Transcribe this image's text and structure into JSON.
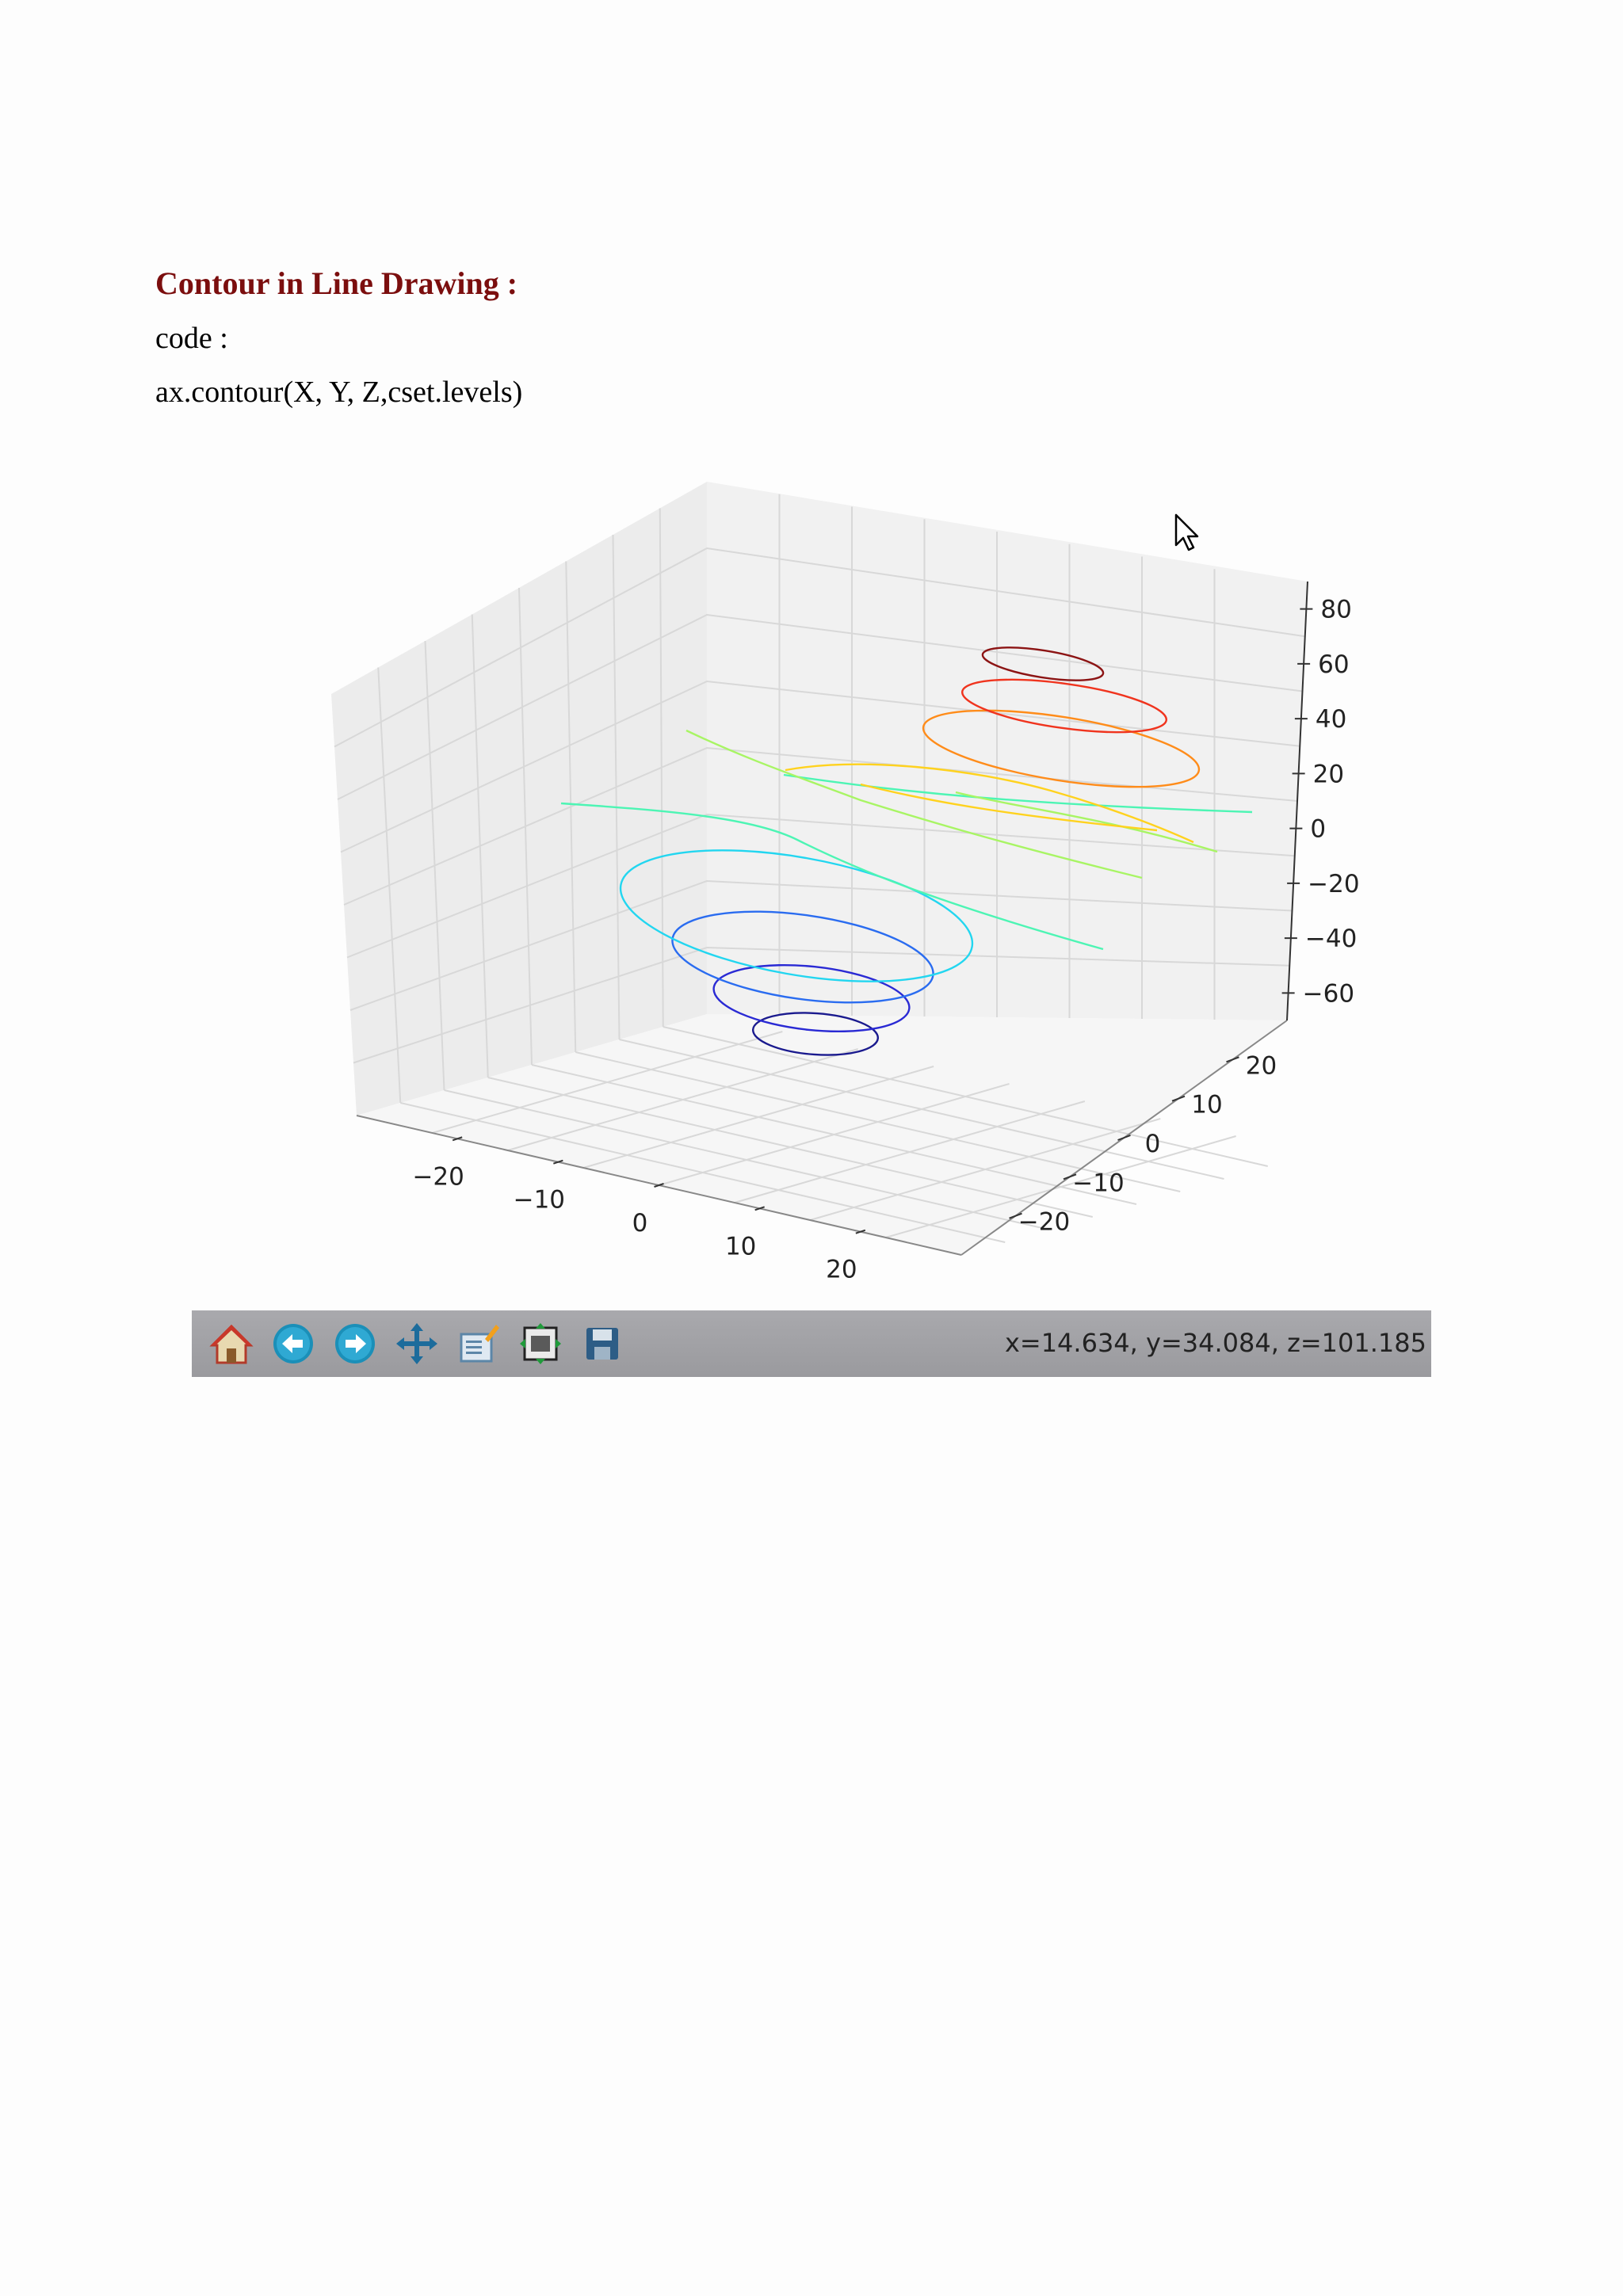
{
  "document": {
    "heading": "Contour in Line Drawing :",
    "code_label": "code :",
    "code_line": "ax.contour(X, Y, Z,cset.levels)"
  },
  "toolbar": {
    "buttons": [
      {
        "name": "home-button",
        "icon": "home-icon"
      },
      {
        "name": "back-button",
        "icon": "arrow-left-icon"
      },
      {
        "name": "forward-button",
        "icon": "arrow-right-icon"
      },
      {
        "name": "pan-button",
        "icon": "move-arrows-icon"
      },
      {
        "name": "zoom-button",
        "icon": "zoom-rect-icon"
      },
      {
        "name": "subplots-button",
        "icon": "subplots-icon"
      },
      {
        "name": "save-button",
        "icon": "floppy-disk-icon"
      }
    ],
    "coordinates": "x=14.634, y=34.084, z=101.185"
  },
  "chart_data": {
    "type": "line",
    "kind": "3d-contour",
    "x_ticks": [
      "−20",
      "−10",
      "0",
      "10",
      "20"
    ],
    "y_ticks": [
      "−20",
      "−10",
      "0",
      "10",
      "20"
    ],
    "z_ticks": [
      "80",
      "60",
      "40",
      "20",
      "0",
      "−20",
      "−40",
      "−60"
    ],
    "xlim": [
      -30,
      30
    ],
    "ylim": [
      -30,
      30
    ],
    "zlim": [
      -70,
      90
    ],
    "grid": true,
    "colormap": "jet",
    "levels": [
      {
        "z": -60,
        "color": "#1a1a8e",
        "shape": "loop"
      },
      {
        "z": -40,
        "color": "#2a2ad4",
        "shape": "loop"
      },
      {
        "z": -20,
        "color": "#2a6cf0",
        "shape": "loop"
      },
      {
        "z": 0,
        "color": "#22d6f0",
        "shape": "loop"
      },
      {
        "z": 10,
        "color": "#4df5b4",
        "shape": "open"
      },
      {
        "z": 20,
        "color": "#a8f564",
        "shape": "open"
      },
      {
        "z": 30,
        "color": "#ffd21e",
        "shape": "open"
      },
      {
        "z": 40,
        "color": "#ff8c1a",
        "shape": "loop"
      },
      {
        "z": 60,
        "color": "#f0341e",
        "shape": "loop"
      },
      {
        "z": 80,
        "color": "#8c1414",
        "shape": "loop"
      }
    ]
  }
}
